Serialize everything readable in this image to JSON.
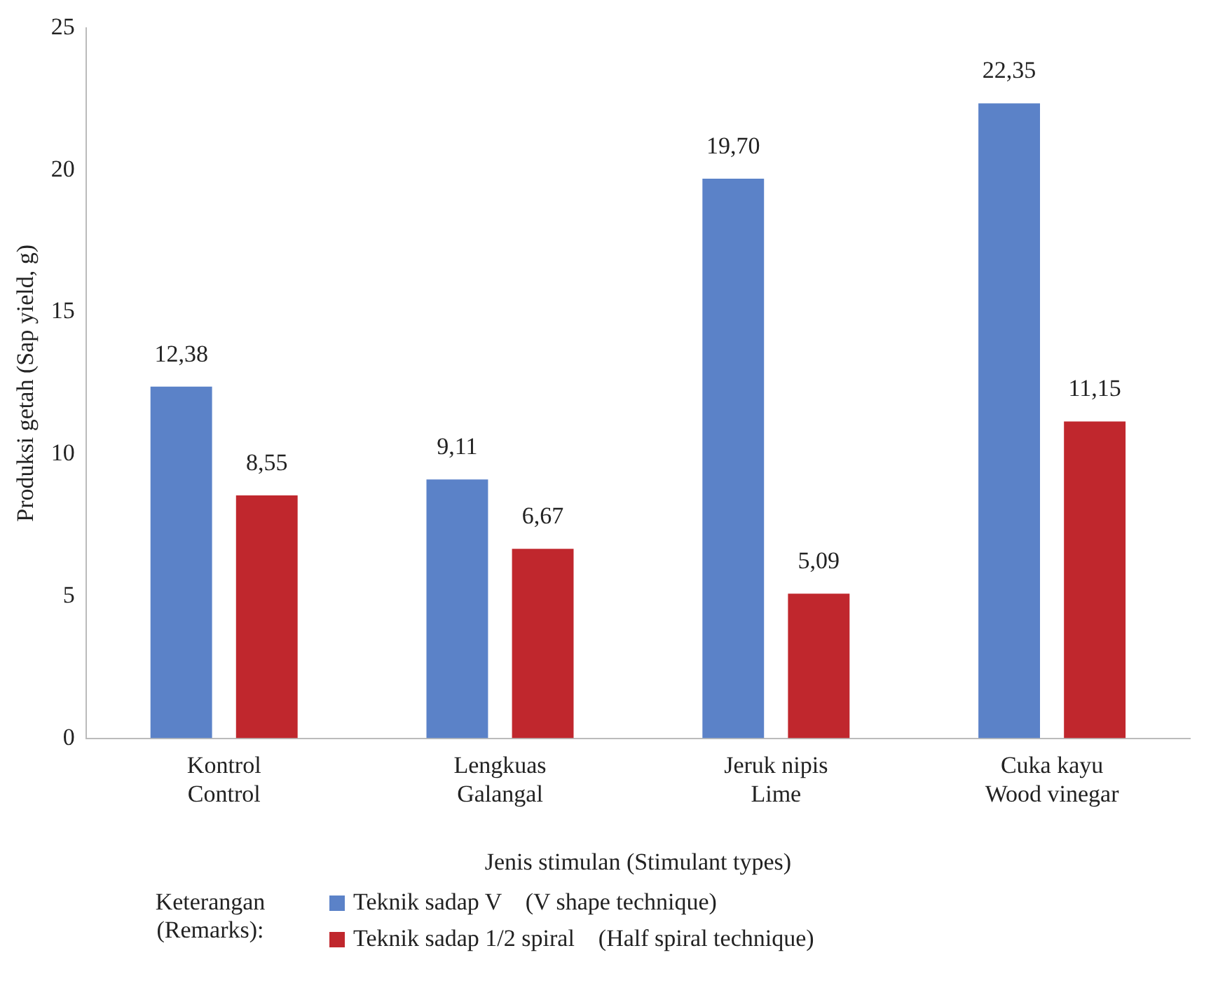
{
  "chart_data": {
    "type": "bar",
    "ylabel": "Produksi getah (Sap yield, g)",
    "xlabel": "Jenis stimulan (Stimulant types)",
    "legend_title": "Keterangan (Remarks):",
    "legend": "bottom",
    "categories": [
      "Kontrol\nControl",
      "Lengkuas\nGalangal",
      "Jeruk nipis\nLime",
      "Cuka kayu\nWood vinegar"
    ],
    "series": [
      {
        "name": "Teknik sadap V    (V shape technique)",
        "color": "#5b82c8",
        "values": [
          12.38,
          9.11,
          19.7,
          22.35
        ],
        "value_labels": [
          "12,38",
          "9,11",
          "19,70",
          "22,35"
        ]
      },
      {
        "name": "Teknik sadap 1/2 spiral    (Half spiral technique)",
        "color": "#c0272d",
        "values": [
          8.55,
          6.67,
          5.09,
          11.15
        ],
        "value_labels": [
          "8,55",
          "6,67",
          "5,09",
          "11,15"
        ]
      }
    ],
    "ylim": [
      0,
      25
    ],
    "yticks": [
      0,
      5,
      10,
      15,
      20,
      25
    ]
  }
}
